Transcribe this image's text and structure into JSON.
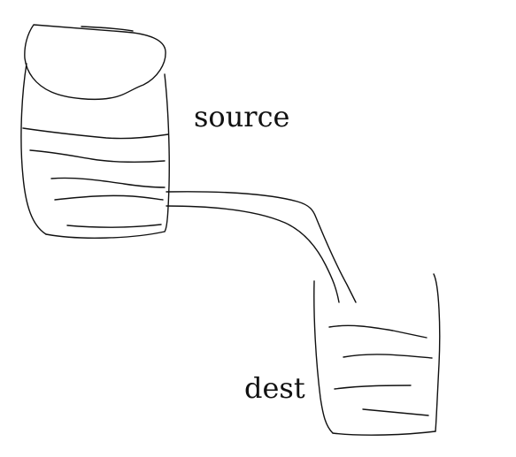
{
  "colors": {
    "ink": "#111111",
    "background": "#ffffff"
  },
  "labels": {
    "source": "source",
    "dest": "dest"
  }
}
